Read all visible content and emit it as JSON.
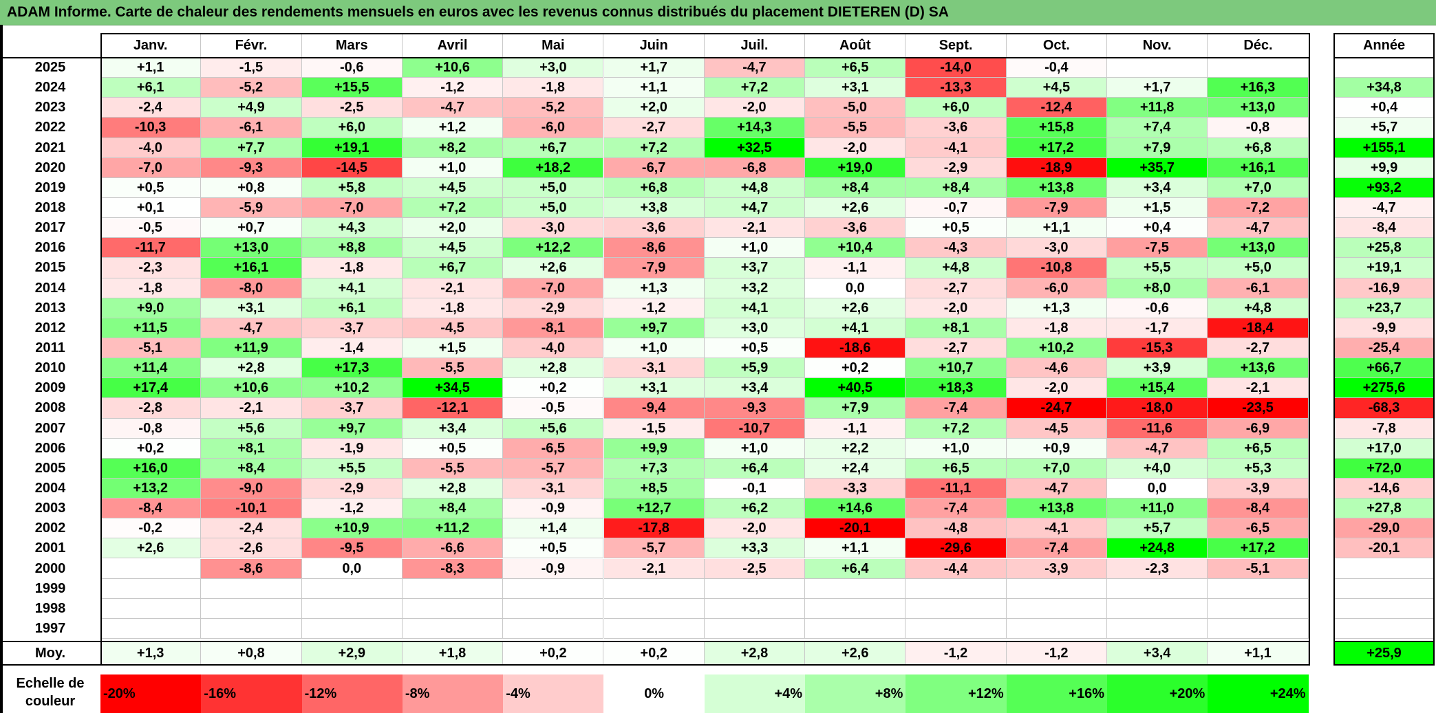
{
  "title": "ADAM Informe. Carte de chaleur des rendements mensuels en euros avec les revenus connus distribués du placement DIETEREN (D) SA",
  "headers": {
    "months": [
      "Janv.",
      "Févr.",
      "Mars",
      "Avril",
      "Mai",
      "Juin",
      "Juil.",
      "Août",
      "Sept.",
      "Oct.",
      "Nov.",
      "Déc."
    ],
    "year_col": "Année",
    "average_row": "Moy."
  },
  "scale": {
    "label": "Echelle de couleur",
    "steps": [
      "-20%",
      "-16%",
      "-12%",
      "-8%",
      "-4%",
      "0%",
      "+4%",
      "+8%",
      "+12%",
      "+16%",
      "+20%",
      "+24%"
    ]
  },
  "colors": {
    "title_bg": "#7dc97d",
    "negative_max": "#ff0000",
    "positive_max": "#00ff00",
    "neutral": "#ffffff"
  },
  "chart_data": {
    "type": "heatmap",
    "title": "ADAM Informe. Carte de chaleur des rendements mensuels en euros avec les revenus connus distribués du placement DIETEREN (D) SA",
    "columns": [
      "Janv.",
      "Févr.",
      "Mars",
      "Avril",
      "Mai",
      "Juin",
      "Juil.",
      "Août",
      "Sept.",
      "Oct.",
      "Nov.",
      "Déc."
    ],
    "rows": [
      {
        "year": "2025",
        "values": [
          "+1,1",
          "-1,5",
          "-0,6",
          "+10,6",
          "+3,0",
          "+1,7",
          "-4,7",
          "+6,5",
          "-14,0",
          "-0,4",
          "",
          ""
        ],
        "annual": ""
      },
      {
        "year": "2024",
        "values": [
          "+6,1",
          "-5,2",
          "+15,5",
          "-1,2",
          "-1,8",
          "+1,1",
          "+7,2",
          "+3,1",
          "-13,3",
          "+4,5",
          "+1,7",
          "+16,3"
        ],
        "annual": "+34,8"
      },
      {
        "year": "2023",
        "values": [
          "-2,4",
          "+4,9",
          "-2,5",
          "-4,7",
          "-5,2",
          "+2,0",
          "-2,0",
          "-5,0",
          "+6,0",
          "-12,4",
          "+11,8",
          "+13,0"
        ],
        "annual": "+0,4"
      },
      {
        "year": "2022",
        "values": [
          "-10,3",
          "-6,1",
          "+6,0",
          "+1,2",
          "-6,0",
          "-2,7",
          "+14,3",
          "-5,5",
          "-3,6",
          "+15,8",
          "+7,4",
          "-0,8"
        ],
        "annual": "+5,7"
      },
      {
        "year": "2021",
        "values": [
          "-4,0",
          "+7,7",
          "+19,1",
          "+8,2",
          "+6,7",
          "+7,2",
          "+32,5",
          "-2,0",
          "-4,1",
          "+17,2",
          "+7,9",
          "+6,8"
        ],
        "annual": "+155,1"
      },
      {
        "year": "2020",
        "values": [
          "-7,0",
          "-9,3",
          "-14,5",
          "+1,0",
          "+18,2",
          "-6,7",
          "-6,8",
          "+19,0",
          "-2,9",
          "-18,9",
          "+35,7",
          "+16,1"
        ],
        "annual": "+9,9"
      },
      {
        "year": "2019",
        "values": [
          "+0,5",
          "+0,8",
          "+5,8",
          "+4,5",
          "+5,0",
          "+6,8",
          "+4,8",
          "+8,4",
          "+8,4",
          "+13,8",
          "+3,4",
          "+7,0"
        ],
        "annual": "+93,2"
      },
      {
        "year": "2018",
        "values": [
          "+0,1",
          "-5,9",
          "-7,0",
          "+7,2",
          "+5,0",
          "+3,8",
          "+4,7",
          "+2,6",
          "-0,7",
          "-7,9",
          "+1,5",
          "-7,2"
        ],
        "annual": "-4,7"
      },
      {
        "year": "2017",
        "values": [
          "-0,5",
          "+0,7",
          "+4,3",
          "+2,0",
          "-3,0",
          "-3,6",
          "-2,1",
          "-3,6",
          "+0,5",
          "+1,1",
          "+0,4",
          "-4,7"
        ],
        "annual": "-8,4"
      },
      {
        "year": "2016",
        "values": [
          "-11,7",
          "+13,0",
          "+8,8",
          "+4,5",
          "+12,2",
          "-8,6",
          "+1,0",
          "+10,4",
          "-4,3",
          "-3,0",
          "-7,5",
          "+13,0"
        ],
        "annual": "+25,8"
      },
      {
        "year": "2015",
        "values": [
          "-2,3",
          "+16,1",
          "-1,8",
          "+6,7",
          "+2,6",
          "-7,9",
          "+3,7",
          "-1,1",
          "+4,8",
          "-10,8",
          "+5,5",
          "+5,0"
        ],
        "annual": "+19,1"
      },
      {
        "year": "2014",
        "values": [
          "-1,8",
          "-8,0",
          "+4,1",
          "-2,1",
          "-7,0",
          "+1,3",
          "+3,2",
          "0,0",
          "-2,7",
          "-6,0",
          "+8,0",
          "-6,1"
        ],
        "annual": "-16,9"
      },
      {
        "year": "2013",
        "values": [
          "+9,0",
          "+3,1",
          "+6,1",
          "-1,8",
          "-2,9",
          "-1,2",
          "+4,1",
          "+2,6",
          "-2,0",
          "+1,3",
          "-0,6",
          "+4,8"
        ],
        "annual": "+23,7"
      },
      {
        "year": "2012",
        "values": [
          "+11,5",
          "-4,7",
          "-3,7",
          "-4,5",
          "-8,1",
          "+9,7",
          "+3,0",
          "+4,1",
          "+8,1",
          "-1,8",
          "-1,7",
          "-18,4"
        ],
        "annual": "-9,9"
      },
      {
        "year": "2011",
        "values": [
          "-5,1",
          "+11,9",
          "-1,4",
          "+1,5",
          "-4,0",
          "+1,0",
          "+0,5",
          "-18,6",
          "-2,7",
          "+10,2",
          "-15,3",
          "-2,7"
        ],
        "annual": "-25,4"
      },
      {
        "year": "2010",
        "values": [
          "+11,4",
          "+2,8",
          "+17,3",
          "-5,5",
          "+2,8",
          "-3,1",
          "+5,9",
          "+0,2",
          "+10,7",
          "-4,6",
          "+3,9",
          "+13,6"
        ],
        "annual": "+66,7"
      },
      {
        "year": "2009",
        "values": [
          "+17,4",
          "+10,6",
          "+10,2",
          "+34,5",
          "+0,2",
          "+3,1",
          "+3,4",
          "+40,5",
          "+18,3",
          "-2,0",
          "+15,4",
          "-2,1"
        ],
        "annual": "+275,6"
      },
      {
        "year": "2008",
        "values": [
          "-2,8",
          "-2,1",
          "-3,7",
          "-12,1",
          "-0,5",
          "-9,4",
          "-9,3",
          "+7,9",
          "-7,4",
          "-24,7",
          "-18,0",
          "-23,5"
        ],
        "annual": "-68,3"
      },
      {
        "year": "2007",
        "values": [
          "-0,8",
          "+5,6",
          "+9,7",
          "+3,4",
          "+5,6",
          "-1,5",
          "-10,7",
          "-1,1",
          "+7,2",
          "-4,5",
          "-11,6",
          "-6,9"
        ],
        "annual": "-7,8"
      },
      {
        "year": "2006",
        "values": [
          "+0,2",
          "+8,1",
          "-1,9",
          "+0,5",
          "-6,5",
          "+9,9",
          "+1,0",
          "+2,2",
          "+1,0",
          "+0,9",
          "-4,7",
          "+6,5"
        ],
        "annual": "+17,0"
      },
      {
        "year": "2005",
        "values": [
          "+16,0",
          "+8,4",
          "+5,5",
          "-5,5",
          "-5,7",
          "+7,3",
          "+6,4",
          "+2,4",
          "+6,5",
          "+7,0",
          "+4,0",
          "+5,3"
        ],
        "annual": "+72,0"
      },
      {
        "year": "2004",
        "values": [
          "+13,2",
          "-9,0",
          "-2,9",
          "+2,8",
          "-3,1",
          "+8,5",
          "-0,1",
          "-3,3",
          "-11,1",
          "-4,7",
          "0,0",
          "-3,9"
        ],
        "annual": "-14,6"
      },
      {
        "year": "2003",
        "values": [
          "-8,4",
          "-10,1",
          "-1,2",
          "+8,4",
          "-0,9",
          "+12,7",
          "+6,2",
          "+14,6",
          "-7,4",
          "+13,8",
          "+11,0",
          "-8,4"
        ],
        "annual": "+27,8"
      },
      {
        "year": "2002",
        "values": [
          "-0,2",
          "-2,4",
          "+10,9",
          "+11,2",
          "+1,4",
          "-17,8",
          "-2,0",
          "-20,1",
          "-4,8",
          "-4,1",
          "+5,7",
          "-6,5"
        ],
        "annual": "-29,0"
      },
      {
        "year": "2001",
        "values": [
          "+2,6",
          "-2,6",
          "-9,5",
          "-6,6",
          "+0,5",
          "-5,7",
          "+3,3",
          "+1,1",
          "-29,6",
          "-7,4",
          "+24,8",
          "+17,2"
        ],
        "annual": "-20,1"
      },
      {
        "year": "2000",
        "values": [
          "",
          "-8,6",
          "0,0",
          "-8,3",
          "-0,9",
          "-2,1",
          "-2,5",
          "+6,4",
          "-4,4",
          "-3,9",
          "-2,3",
          "-5,1"
        ],
        "annual": ""
      },
      {
        "year": "1999",
        "values": [
          "",
          "",
          "",
          "",
          "",
          "",
          "",
          "",
          "",
          "",
          "",
          ""
        ],
        "annual": ""
      },
      {
        "year": "1998",
        "values": [
          "",
          "",
          "",
          "",
          "",
          "",
          "",
          "",
          "",
          "",
          "",
          ""
        ],
        "annual": ""
      },
      {
        "year": "1997",
        "values": [
          "",
          "",
          "",
          "",
          "",
          "",
          "",
          "",
          "",
          "",
          "",
          ""
        ],
        "annual": ""
      }
    ],
    "average": {
      "values": [
        "+1,3",
        "+0,8",
        "+2,9",
        "+1,8",
        "+0,2",
        "+0,2",
        "+2,8",
        "+2,6",
        "-1,2",
        "-1,2",
        "+3,4",
        "+1,1"
      ],
      "annual": "+25,9"
    }
  }
}
